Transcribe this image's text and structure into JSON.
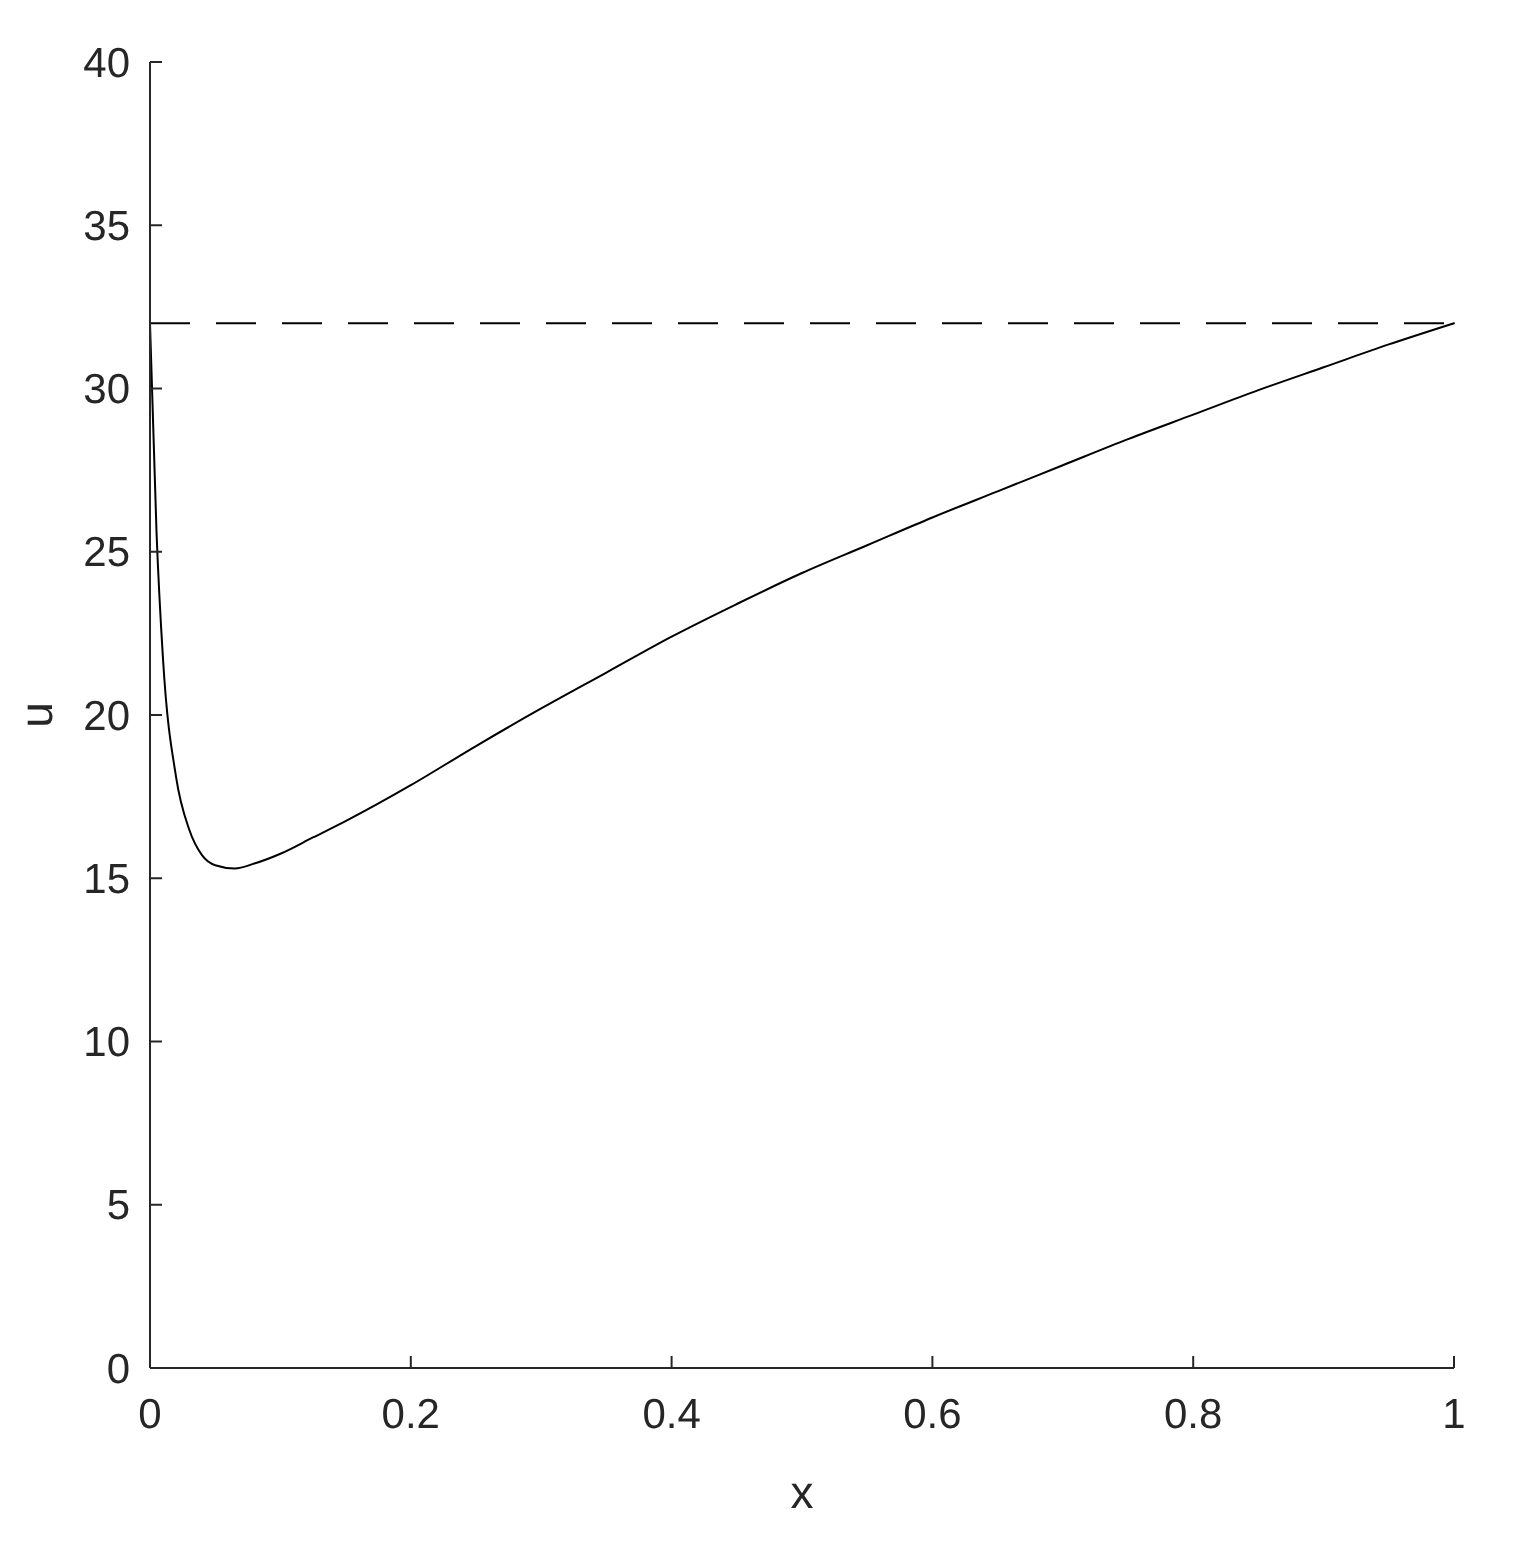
{
  "chart_data": {
    "type": "line",
    "xlabel": "x",
    "ylabel": "u",
    "x": [
      0,
      0.005,
      0.01,
      0.02,
      0.03,
      0.04,
      0.05,
      0.065,
      0.08,
      0.1,
      0.125,
      0.15,
      0.2,
      0.25,
      0.3,
      0.35,
      0.4,
      0.45,
      0.5,
      0.55,
      0.6,
      0.65,
      0.7,
      0.75,
      0.8,
      0.85,
      0.9,
      0.95,
      1.0
    ],
    "series": [
      {
        "color": "#000000",
        "values": [
          32,
          25.6,
          21.7,
          18.1,
          16.5,
          15.7,
          15.4,
          15.3,
          15.45,
          15.75,
          16.25,
          16.75,
          17.85,
          19.05,
          20.2,
          21.3,
          22.4,
          23.4,
          24.35,
          25.2,
          26.05,
          26.85,
          27.65,
          28.45,
          29.2,
          29.95,
          30.65,
          31.35,
          32
        ]
      }
    ],
    "ref_lines": [
      {
        "axis": "y",
        "value": 32,
        "color": "#000000",
        "line_style": "dashed"
      }
    ],
    "xlim": [
      0,
      1
    ],
    "xticks": [
      0,
      0.2,
      0.4,
      0.6,
      0.8,
      1
    ],
    "ylim": [
      0,
      40
    ],
    "yticks": [
      0,
      5,
      10,
      15,
      20,
      25,
      30,
      35,
      40
    ],
    "line_style": "solid"
  }
}
